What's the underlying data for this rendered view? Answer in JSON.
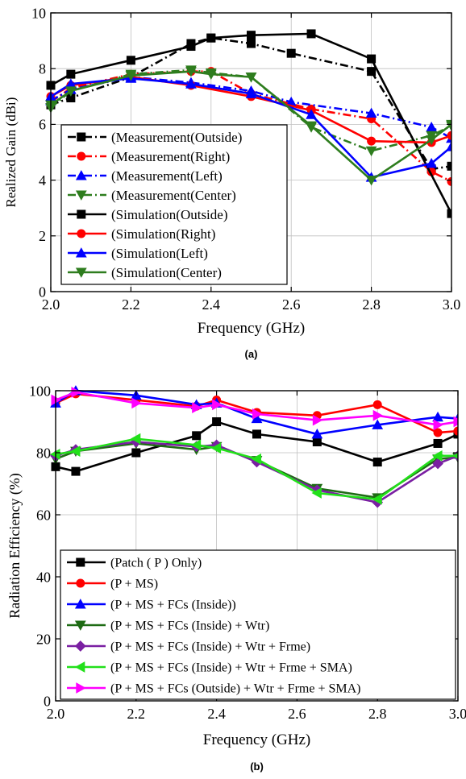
{
  "chart_data": [
    {
      "type": "line",
      "caption": "(a)",
      "xlabel": "Frequency (GHz)",
      "ylabel": "Realized Gain (dBi)",
      "xlim": [
        2.0,
        3.0
      ],
      "ylim": [
        0,
        10
      ],
      "xticks": [
        "2.0",
        "2.2",
        "2.4",
        "2.6",
        "2.8",
        "3.0"
      ],
      "yticks": [
        "0",
        "2",
        "4",
        "6",
        "8",
        "10"
      ],
      "legend_position": "lower-left",
      "series": [
        {
          "name": "(Measurement(Outside)",
          "color": "#000000",
          "dash": "dashdot",
          "marker": "square",
          "x": [
            2.0,
            2.05,
            2.2,
            2.35,
            2.4,
            2.5,
            2.6,
            2.8,
            2.95,
            3.0
          ],
          "y": [
            6.7,
            6.95,
            7.7,
            8.9,
            9.1,
            8.9,
            8.55,
            7.9,
            4.4,
            4.5
          ]
        },
        {
          "name": "(Measurement(Right)",
          "color": "#ff0000",
          "dash": "dashdot",
          "marker": "circle",
          "x": [
            2.0,
            2.05,
            2.2,
            2.35,
            2.4,
            2.5,
            2.65,
            2.8,
            2.95,
            3.0
          ],
          "y": [
            6.8,
            7.3,
            7.8,
            7.9,
            7.9,
            7.1,
            6.55,
            6.2,
            4.3,
            3.95
          ]
        },
        {
          "name": "(Measurement(Left)",
          "color": "#0000ff",
          "dash": "dashdot",
          "marker": "triangle-up",
          "x": [
            2.0,
            2.05,
            2.2,
            2.35,
            2.5,
            2.6,
            2.8,
            2.95,
            3.0
          ],
          "y": [
            6.85,
            7.25,
            7.7,
            7.5,
            7.2,
            6.8,
            6.4,
            5.9,
            5.5
          ]
        },
        {
          "name": "(Measurement(Center)",
          "color": "#2e7d1e",
          "dash": "dashdot",
          "marker": "triangle-down",
          "x": [
            2.0,
            2.05,
            2.2,
            2.35,
            2.4,
            2.5,
            2.65,
            2.8,
            2.95,
            3.0
          ],
          "y": [
            6.6,
            7.2,
            7.8,
            7.95,
            7.85,
            7.7,
            5.9,
            5.05,
            5.6,
            5.95
          ]
        },
        {
          "name": "(Simulation(Outside)",
          "color": "#000000",
          "dash": "solid",
          "marker": "square",
          "x": [
            2.0,
            2.05,
            2.2,
            2.35,
            2.4,
            2.5,
            2.65,
            2.8,
            3.0
          ],
          "y": [
            7.4,
            7.8,
            8.3,
            8.8,
            9.1,
            9.2,
            9.25,
            8.35,
            2.8
          ]
        },
        {
          "name": "(Simulation(Right)",
          "color": "#ff0000",
          "dash": "solid",
          "marker": "circle",
          "x": [
            2.0,
            2.05,
            2.2,
            2.35,
            2.5,
            2.65,
            2.8,
            2.95,
            3.0
          ],
          "y": [
            7.0,
            7.4,
            7.7,
            7.4,
            7.0,
            6.5,
            5.4,
            5.35,
            5.6
          ]
        },
        {
          "name": "(Simulation(Left)",
          "color": "#0000ff",
          "dash": "solid",
          "marker": "triangle-up",
          "x": [
            2.0,
            2.05,
            2.2,
            2.35,
            2.5,
            2.65,
            2.8,
            2.95,
            3.0
          ],
          "y": [
            7.0,
            7.45,
            7.65,
            7.45,
            7.1,
            6.35,
            4.1,
            4.6,
            5.2
          ]
        },
        {
          "name": "(Simulation(Center)",
          "color": "#2e7d1e",
          "dash": "solid",
          "marker": "triangle-down",
          "x": [
            2.0,
            2.05,
            2.2,
            2.35,
            2.4,
            2.5,
            2.65,
            2.8,
            2.95,
            3.0
          ],
          "y": [
            6.7,
            7.2,
            7.75,
            7.9,
            7.8,
            7.7,
            5.95,
            4.0,
            5.45,
            6.0
          ]
        }
      ]
    },
    {
      "type": "line",
      "caption": "(b)",
      "xlabel": "Frequency (GHz)",
      "ylabel": "Radiation Efficiency (%)",
      "xlim": [
        2.0,
        3.0
      ],
      "ylim": [
        0,
        100
      ],
      "xticks": [
        "2.0",
        "2.2",
        "2.4",
        "2.6",
        "2.8",
        "3.0"
      ],
      "yticks": [
        "0",
        "20",
        "40",
        "60",
        "80",
        "100"
      ],
      "legend_position": "lower-left",
      "series": [
        {
          "name": "(Patch ( P ) Only)",
          "color": "#000000",
          "dash": "solid",
          "marker": "square",
          "x": [
            2.0,
            2.05,
            2.2,
            2.35,
            2.4,
            2.5,
            2.65,
            2.8,
            2.95,
            3.0
          ],
          "y": [
            75.5,
            74,
            80,
            85.5,
            90,
            86,
            83.5,
            77,
            83,
            86
          ]
        },
        {
          "name": "(P + MS)",
          "color": "#ff0000",
          "dash": "solid",
          "marker": "circle",
          "x": [
            2.0,
            2.05,
            2.2,
            2.35,
            2.4,
            2.5,
            2.65,
            2.8,
            2.95,
            3.0
          ],
          "y": [
            96,
            99,
            97,
            95,
            97,
            93,
            92,
            95.5,
            86.5,
            87
          ]
        },
        {
          "name": "(P + MS + FCs (Inside))",
          "color": "#0000ff",
          "dash": "solid",
          "marker": "triangle-up",
          "x": [
            2.0,
            2.05,
            2.2,
            2.35,
            2.4,
            2.5,
            2.65,
            2.8,
            2.95,
            3.0
          ],
          "y": [
            96,
            100,
            98.5,
            95.5,
            96,
            91,
            86,
            89,
            91.5,
            91
          ]
        },
        {
          "name": "(P + MS + FCs (Inside) + Wtr)",
          "color": "#1e6b14",
          "dash": "solid",
          "marker": "triangle-down",
          "x": [
            2.0,
            2.05,
            2.2,
            2.35,
            2.4,
            2.5,
            2.65,
            2.8,
            2.95,
            3.0
          ],
          "y": [
            78,
            80.5,
            83,
            81,
            82,
            77.5,
            68.5,
            65.5,
            78,
            78.5
          ]
        },
        {
          "name": "(P + MS + FCs (Inside) + Wtr + Frme)",
          "color": "#7a1fa2",
          "dash": "solid",
          "marker": "diamond",
          "x": [
            2.0,
            2.05,
            2.2,
            2.35,
            2.4,
            2.5,
            2.65,
            2.8,
            2.95,
            3.0
          ],
          "y": [
            79,
            81,
            83.5,
            82,
            82.5,
            77,
            68,
            64,
            76.5,
            79
          ]
        },
        {
          "name": "(P + MS + FCs (Inside) + Wtr + Frme + SMA)",
          "color": "#22e01a",
          "dash": "solid",
          "marker": "triangle-left",
          "x": [
            2.0,
            2.05,
            2.2,
            2.35,
            2.4,
            2.5,
            2.65,
            2.8,
            2.95,
            3.0
          ],
          "y": [
            79.5,
            80.5,
            84.5,
            82.5,
            81.5,
            78,
            67,
            65,
            79,
            79
          ]
        },
        {
          "name": "(P + MS + FCs (Outside) + Wtr + Frme + SMA)",
          "color": "#ff00ff",
          "dash": "solid",
          "marker": "triangle-right",
          "x": [
            2.0,
            2.05,
            2.2,
            2.35,
            2.4,
            2.5,
            2.65,
            2.8,
            2.95,
            3.0
          ],
          "y": [
            97,
            99.5,
            96,
            94.5,
            95.5,
            92.5,
            90.5,
            92,
            89,
            90
          ]
        }
      ]
    }
  ]
}
